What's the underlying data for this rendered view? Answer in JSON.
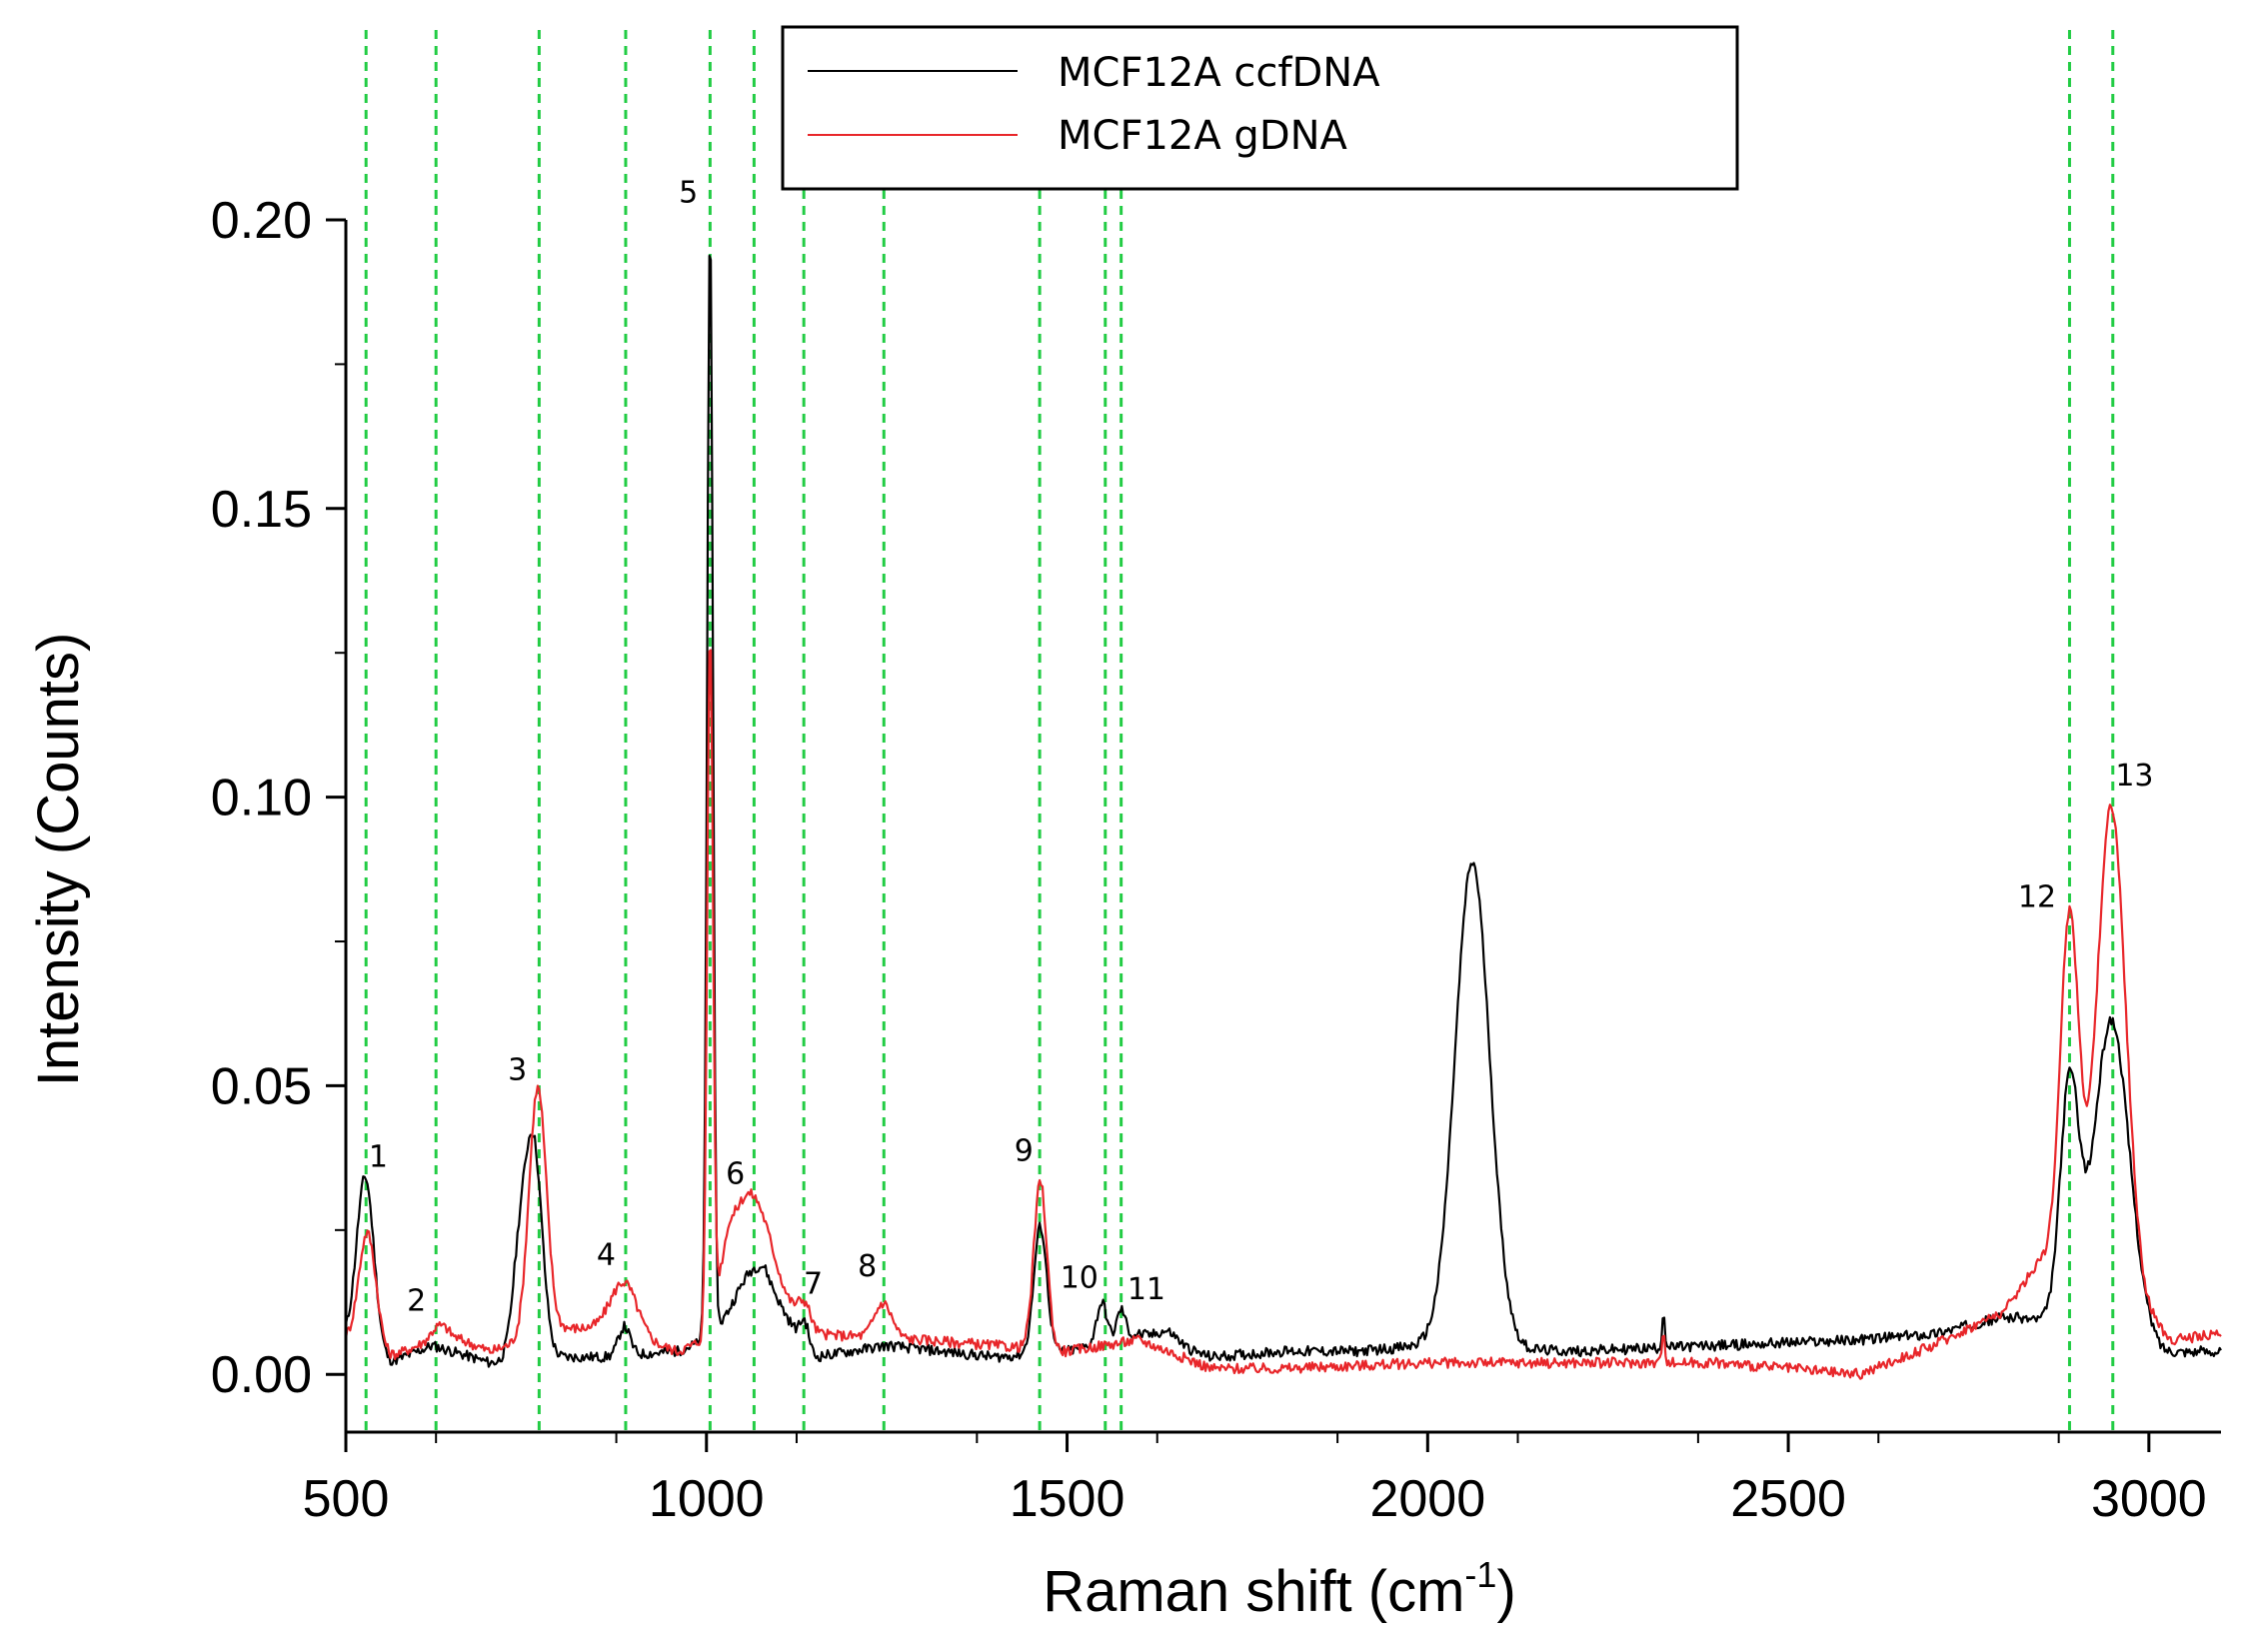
{
  "chart_data": {
    "type": "line",
    "title": "",
    "xlabel": "Raman shift (cm",
    "xlabel_superscript": "-1",
    "xlabel_suffix": ")",
    "ylabel": "Intensity (Counts)",
    "xlim": [
      500,
      3100
    ],
    "ylim": [
      -0.01,
      0.2
    ],
    "x_ticks": [
      500,
      1000,
      1500,
      2000,
      2500,
      3000
    ],
    "x_tick_labels": [
      "500",
      "1000",
      "1500",
      "2000",
      "2500",
      "3000"
    ],
    "y_ticks": [
      0.0,
      0.05,
      0.1,
      0.15,
      0.2
    ],
    "y_tick_labels": [
      "0.00",
      "0.05",
      "0.10",
      "0.15",
      "0.20"
    ],
    "legend_position": "top-center",
    "series": [
      {
        "name": "MCF12A ccfDNA",
        "color": "#000000",
        "baseline": [
          [
            500,
            0.006
          ],
          [
            560,
            0.002
          ],
          [
            620,
            0.005
          ],
          [
            700,
            0.002
          ],
          [
            780,
            0.003
          ],
          [
            860,
            0.003
          ],
          [
            960,
            0.004
          ],
          [
            1000,
            0.006
          ],
          [
            1080,
            0.015
          ],
          [
            1150,
            0.003
          ],
          [
            1250,
            0.005
          ],
          [
            1400,
            0.003
          ],
          [
            1500,
            0.004
          ],
          [
            1600,
            0.007
          ],
          [
            1700,
            0.003
          ],
          [
            1800,
            0.004
          ],
          [
            1900,
            0.004
          ],
          [
            2000,
            0.005
          ],
          [
            2200,
            0.004
          ],
          [
            2400,
            0.005
          ],
          [
            2600,
            0.006
          ],
          [
            2700,
            0.007
          ],
          [
            2800,
            0.01
          ],
          [
            2980,
            0.008
          ],
          [
            3020,
            0.004
          ],
          [
            3100,
            0.004
          ]
        ],
        "peaks": [
          {
            "x": 527,
            "height": 0.03,
            "width": 12
          },
          {
            "x": 740,
            "height": 0.015,
            "width": 10
          },
          {
            "x": 760,
            "height": 0.037,
            "width": 12
          },
          {
            "x": 886,
            "height": 0.005,
            "width": 8
          },
          {
            "x": 1005,
            "height": 0.193,
            "width": 4
          },
          {
            "x": 1063,
            "height": 0.005,
            "width": 22
          },
          {
            "x": 1136,
            "height": 0.004,
            "width": 6
          },
          {
            "x": 1463,
            "height": 0.022,
            "width": 9
          },
          {
            "x": 1548,
            "height": 0.007,
            "width": 7
          },
          {
            "x": 1575,
            "height": 0.005,
            "width": 6
          },
          {
            "x": 1640,
            "height": 0.002,
            "width": 14
          },
          {
            "x": 2062,
            "height": 0.084,
            "width": 24
          },
          {
            "x": 2327,
            "height": 0.006,
            "width": 2
          },
          {
            "x": 2890,
            "height": 0.041,
            "width": 13
          },
          {
            "x": 2948,
            "height": 0.053,
            "width": 24
          }
        ]
      },
      {
        "name": "MCF12A gDNA",
        "color": "#e8262a",
        "baseline": [
          [
            500,
            0.006
          ],
          [
            560,
            0.003
          ],
          [
            640,
            0.007
          ],
          [
            700,
            0.004
          ],
          [
            800,
            0.008
          ],
          [
            860,
            0.008
          ],
          [
            960,
            0.004
          ],
          [
            1000,
            0.006
          ],
          [
            1030,
            0.02
          ],
          [
            1100,
            0.012
          ],
          [
            1150,
            0.007
          ],
          [
            1300,
            0.006
          ],
          [
            1400,
            0.005
          ],
          [
            1500,
            0.004
          ],
          [
            1600,
            0.006
          ],
          [
            1700,
            0.001
          ],
          [
            1800,
            0.001
          ],
          [
            2000,
            0.002
          ],
          [
            2200,
            0.002
          ],
          [
            2400,
            0.002
          ],
          [
            2600,
            0.0
          ],
          [
            2700,
            0.005
          ],
          [
            2800,
            0.011
          ],
          [
            2850,
            0.02
          ],
          [
            3000,
            0.01
          ],
          [
            3030,
            0.006
          ],
          [
            3100,
            0.007
          ]
        ],
        "peaks": [
          {
            "x": 530,
            "height": 0.02,
            "width": 12
          },
          {
            "x": 628,
            "height": 0.002,
            "width": 10
          },
          {
            "x": 766,
            "height": 0.043,
            "width": 12
          },
          {
            "x": 886,
            "height": 0.009,
            "width": 18
          },
          {
            "x": 1005,
            "height": 0.12,
            "width": 4
          },
          {
            "x": 1065,
            "height": 0.015,
            "width": 26
          },
          {
            "x": 1136,
            "height": 0.004,
            "width": 9
          },
          {
            "x": 1245,
            "height": 0.006,
            "width": 12
          },
          {
            "x": 1463,
            "height": 0.029,
            "width": 9
          },
          {
            "x": 2327,
            "height": 0.006,
            "width": 2
          },
          {
            "x": 2890,
            "height": 0.062,
            "width": 13
          },
          {
            "x": 2948,
            "height": 0.085,
            "width": 20
          }
        ]
      }
    ],
    "reference_lines": [
      528,
      625,
      768,
      888,
      1005,
      1066,
      1135,
      1246,
      1462,
      1553,
      1575,
      2890,
      2950
    ],
    "reference_line_color": "#22cc44",
    "peak_annotations": [
      {
        "label": "1",
        "x": 545,
        "y": 0.036
      },
      {
        "label": "2",
        "x": 598,
        "y": 0.011
      },
      {
        "label": "3",
        "x": 738,
        "y": 0.051
      },
      {
        "label": "4",
        "x": 861,
        "y": 0.019
      },
      {
        "label": "5",
        "x": 975,
        "y": 0.203
      },
      {
        "label": "6",
        "x": 1040,
        "y": 0.033
      },
      {
        "label": "7",
        "x": 1148,
        "y": 0.014
      },
      {
        "label": "8",
        "x": 1223,
        "y": 0.017
      },
      {
        "label": "9",
        "x": 1440,
        "y": 0.037
      },
      {
        "label": "10",
        "x": 1517,
        "y": 0.015
      },
      {
        "label": "11",
        "x": 1610,
        "y": 0.013
      },
      {
        "label": "12",
        "x": 2845,
        "y": 0.081
      },
      {
        "label": "13",
        "x": 2980,
        "y": 0.102
      }
    ]
  }
}
